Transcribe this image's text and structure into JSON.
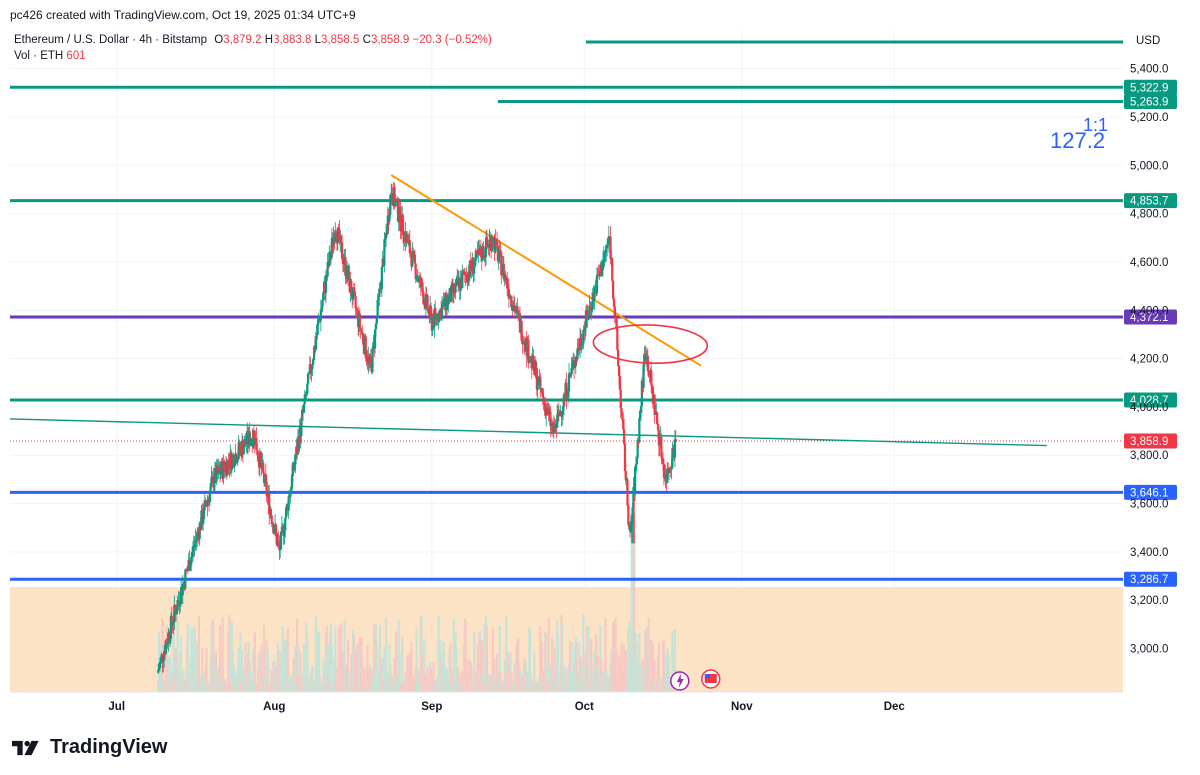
{
  "header": {
    "credit": "pc426 created with TradingView.com, Oct 19, 2025 01:34 UTC+9"
  },
  "legend": {
    "symbol": "Ethereum / U.S. Dollar · 4h · Bitstamp",
    "o_label": "O",
    "o_value": "3,879.2",
    "h_label": "H",
    "h_value": "3,883.8",
    "l_label": "L",
    "l_value": "3,858.5",
    "c_label": "C",
    "c_value": "3,858.9",
    "change": "−20.3 (−0.52%)",
    "vol_label": "Vol · ETH",
    "vol_value": "601"
  },
  "currency": "USD",
  "footer": {
    "brand": "TradingView"
  },
  "colors": {
    "up": "#089981",
    "down": "#f23645",
    "teal": "#089981",
    "purple": "#673ab7",
    "blue": "#2962ff",
    "orange": "#ff9800",
    "price": "#f23645",
    "volume_bg": "#fde3c6"
  },
  "chart_data": {
    "type": "candlestick",
    "title": "Ethereum / U.S. Dollar · 4h · Bitstamp",
    "ylim": [
      2820,
      5560
    ],
    "x_ticks": [
      "Jul",
      "Aug",
      "Sep",
      "Oct",
      "Nov",
      "Dec"
    ],
    "y_ticks": [
      "5,400.0",
      "5,200.0",
      "5,000.0",
      "4,800.0",
      "4,600.0",
      "4,400.0",
      "4,200.0",
      "4,000.0",
      "3,800.0",
      "3,600.0",
      "3,400.0",
      "3,200.0",
      "3,000.0"
    ],
    "last_price": "3,858.9",
    "horizontal_levels": [
      {
        "value": "5,322.9",
        "color": "#089981"
      },
      {
        "value": "5,263.9",
        "color": "#089981"
      },
      {
        "value": "4,853.7",
        "color": "#089981"
      },
      {
        "value": "4,372.1",
        "color": "#673ab7"
      },
      {
        "value": "4,028.7",
        "color": "#089981"
      },
      {
        "value": "3,646.1",
        "color": "#2962ff"
      },
      {
        "value": "3,286.7",
        "color": "#2962ff"
      }
    ],
    "fib_labels": [
      "1:1",
      "127.2"
    ],
    "trendlines": [
      {
        "name": "descending resistance",
        "color": "#ff9800",
        "from": [
          "2025-08-24",
          4960
        ],
        "to": [
          "2025-10-24",
          4170
        ]
      },
      {
        "name": "long support",
        "color": "#089981",
        "from": [
          "2025-06-10",
          3950
        ],
        "to": [
          "2025-12-31",
          3840
        ]
      }
    ],
    "key_points": [
      {
        "date": "2025-07-09",
        "close": 2900
      },
      {
        "date": "2025-07-20",
        "close": 3700
      },
      {
        "date": "2025-07-28",
        "close": 3890
      },
      {
        "date": "2025-08-02",
        "close": 3400
      },
      {
        "date": "2025-08-13",
        "close": 4750
      },
      {
        "date": "2025-08-20",
        "close": 4150
      },
      {
        "date": "2025-08-24",
        "close": 4900
      },
      {
        "date": "2025-09-01",
        "close": 4350
      },
      {
        "date": "2025-09-13",
        "close": 4700
      },
      {
        "date": "2025-09-25",
        "close": 3890
      },
      {
        "date": "2025-10-06",
        "close": 4700
      },
      {
        "date": "2025-10-10",
        "close": 3450
      },
      {
        "date": "2025-10-13",
        "close": 4250
      },
      {
        "date": "2025-10-17",
        "close": 3700
      },
      {
        "date": "2025-10-19",
        "close": 3859
      }
    ]
  }
}
